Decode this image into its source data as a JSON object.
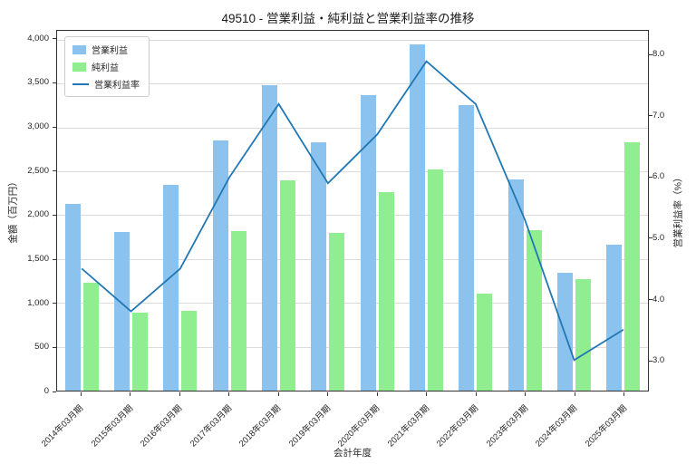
{
  "chart_data": {
    "type": "bar",
    "title": "49510 - 営業利益・純利益と営業利益率の推移",
    "xlabel": "会計年度",
    "ylabel_left": "金額（百万円）",
    "ylabel_right": "営業利益率（%）",
    "categories": [
      "2014年03月期",
      "2015年03月期",
      "2016年03月期",
      "2017年03月期",
      "2018年03月期",
      "2019年03月期",
      "2020年03月期",
      "2021年03月期",
      "2022年03月期",
      "2023年03月期",
      "2024年03月期",
      "2025年03月期"
    ],
    "series": [
      {
        "key": "operating-profit",
        "name": "営業利益",
        "type": "bar",
        "axis": "left",
        "color": "#8cc3ee",
        "values": [
          2130,
          1810,
          2340,
          2850,
          3480,
          2830,
          3370,
          3950,
          3250,
          2410,
          1340,
          1660
        ]
      },
      {
        "key": "net-profit",
        "name": "純利益",
        "type": "bar",
        "axis": "left",
        "color": "#90ee90",
        "values": [
          1230,
          890,
          910,
          1820,
          2400,
          1800,
          2260,
          2520,
          1110,
          1830,
          1270,
          2830
        ]
      },
      {
        "key": "operating-margin",
        "name": "営業利益率",
        "type": "line",
        "axis": "right",
        "color": "#1f77b4",
        "values": [
          4.5,
          3.8,
          4.5,
          6.0,
          7.2,
          5.9,
          6.7,
          7.9,
          7.2,
          5.3,
          3.0,
          3.5
        ]
      }
    ],
    "left_axis": {
      "min": 0,
      "max": 4100,
      "ticks": [
        0,
        500,
        1000,
        1500,
        2000,
        2500,
        3000,
        3500,
        4000
      ]
    },
    "right_axis": {
      "min": 2.5,
      "max": 8.4,
      "ticks": [
        3,
        4,
        5,
        6,
        7,
        8
      ]
    },
    "grid": true,
    "legend_position": "upper-left"
  }
}
